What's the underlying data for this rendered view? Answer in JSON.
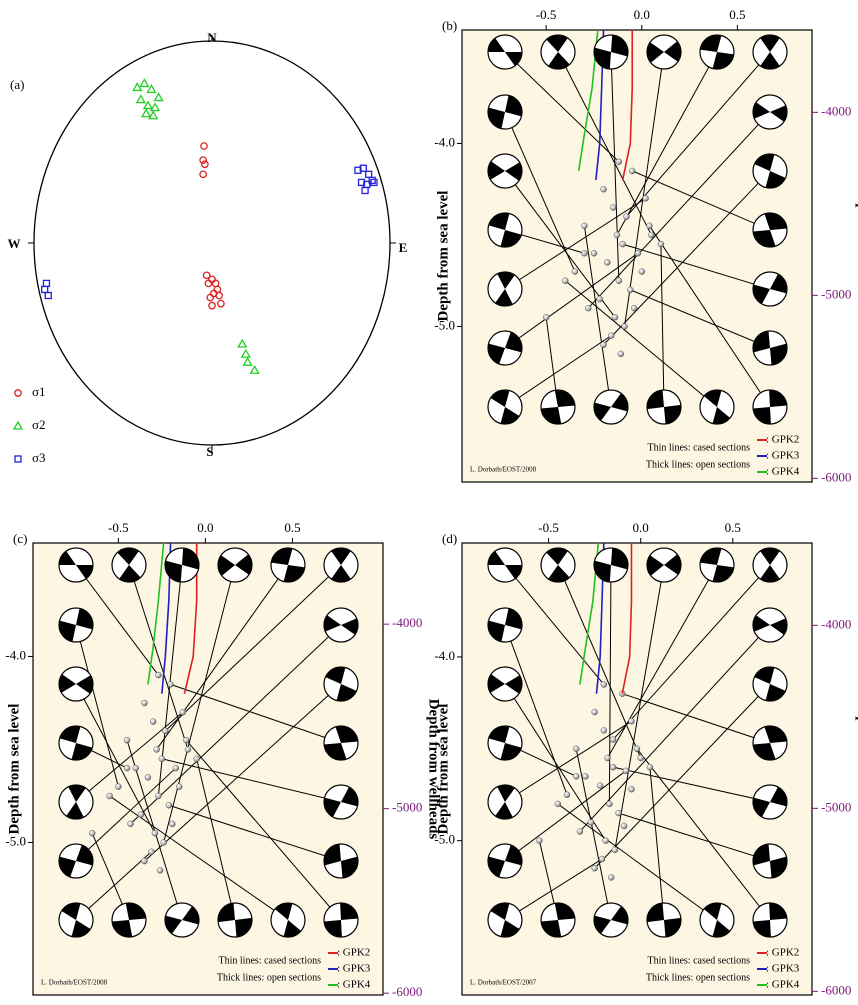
{
  "chart_data": [
    {
      "type": "stereonet",
      "label": "(a)",
      "directions": {
        "N": "N",
        "S": "S",
        "E": "E",
        "W": "W"
      },
      "series": [
        {
          "name": "σ1",
          "color": "#e02020",
          "marker": "circle",
          "x": [
            -0.045,
            -0.05,
            -0.04,
            -0.05,
            -0.03,
            0.0,
            -0.02,
            0.02,
            0.03,
            0.01,
            -0.01,
            0.04,
            0.05,
            0.0
          ],
          "y": [
            0.48,
            0.41,
            0.39,
            0.34,
            -0.16,
            -0.18,
            -0.2,
            -0.2,
            -0.23,
            -0.25,
            -0.27,
            -0.26,
            -0.3,
            -0.31
          ]
        },
        {
          "name": "σ2",
          "color": "#20d020",
          "marker": "triangle",
          "x": [
            -0.42,
            -0.38,
            -0.34,
            -0.3,
            -0.4,
            -0.36,
            -0.32,
            -0.37,
            -0.33,
            0.17,
            0.19,
            0.2,
            0.24
          ],
          "y": [
            0.77,
            0.79,
            0.76,
            0.72,
            0.71,
            0.68,
            0.67,
            0.64,
            0.63,
            -0.5,
            -0.55,
            -0.59,
            -0.63
          ]
        },
        {
          "name": "σ3",
          "color": "#2020e0",
          "marker": "square",
          "x": [
            0.82,
            0.85,
            0.88,
            0.9,
            0.84,
            0.87,
            0.91,
            0.86,
            -0.93,
            -0.94,
            -0.92
          ],
          "y": [
            0.36,
            0.37,
            0.34,
            0.31,
            0.3,
            0.29,
            0.3,
            0.26,
            -0.2,
            -0.23,
            -0.26
          ]
        }
      ]
    },
    {
      "type": "section",
      "label": "(b)",
      "ylabel": "Depth from sea level",
      "y2label": "Depth from wellheads",
      "xlim": [
        -0.94,
        0.89
      ],
      "xticks": [
        -0.5,
        {
          "value": 0,
          "label": "0.0"
        },
        0.5
      ],
      "ylim": [
        -5.85,
        -3.38
      ],
      "yticks": [
        {
          "value": -4,
          "label": "-4.0"
        },
        {
          "value": -5,
          "label": "-5.0"
        }
      ],
      "y2lim": [
        -6020,
        -3550
      ],
      "y2ticks": [
        -4000,
        -5000,
        -6000
      ],
      "notes": [
        "Thin lines: cased sections",
        "Thick lines: open sections"
      ],
      "credit": "L. Dorbath/EOST/2008",
      "series": [
        {
          "name": ":  GPK2",
          "color": "#e02020",
          "x": [
            -0.05,
            -0.05,
            -0.06,
            -0.1
          ],
          "y": [
            -3.38,
            -3.7,
            -4.0,
            -4.2
          ]
        },
        {
          "name": ":  GPK3",
          "color": "#2020c0",
          "x": [
            -0.2,
            -0.21,
            -0.22,
            -0.24
          ],
          "y": [
            -3.38,
            -3.7,
            -4.0,
            -4.2
          ]
        },
        {
          "name": ":  GPK4",
          "color": "#20c020",
          "x": [
            -0.23,
            -0.26,
            -0.3,
            -0.33
          ],
          "y": [
            -3.38,
            -3.7,
            -3.95,
            -4.15
          ]
        }
      ],
      "events": {
        "x": [
          -0.12,
          -0.05,
          -0.2,
          0.02,
          -0.15,
          -0.08,
          -0.3,
          0.05,
          -0.1,
          -0.25,
          -0.02,
          -0.18,
          -0.35,
          0.1,
          -0.12,
          -0.06,
          -0.22,
          -0.28,
          0.0,
          -0.14,
          -0.4,
          -0.09,
          -0.16,
          -0.04,
          -0.2,
          -0.11,
          -0.3,
          0.04,
          -0.13,
          -0.5
        ],
        "depth": [
          -4.1,
          -4.15,
          -4.25,
          -4.3,
          -4.35,
          -4.4,
          -4.45,
          -4.5,
          -4.55,
          -4.6,
          -4.6,
          -4.65,
          -4.7,
          -4.55,
          -4.75,
          -4.8,
          -4.85,
          -4.9,
          -4.7,
          -4.95,
          -4.75,
          -5.0,
          -5.05,
          -4.9,
          -5.1,
          -5.15,
          -4.6,
          -4.45,
          -4.5,
          -4.95
        ]
      }
    },
    {
      "type": "section",
      "label": "(c)",
      "ylabel": "Depth from sea level",
      "y2label": "Depth from wellheads",
      "xlim": [
        -0.99,
        1.02
      ],
      "xticks": [
        -0.5,
        {
          "value": 0,
          "label": "0.0"
        },
        0.5
      ],
      "ylim": [
        -5.82,
        -3.39
      ],
      "yticks": [
        {
          "value": -4,
          "label": "-4.0"
        },
        {
          "value": -5,
          "label": "-5.0"
        }
      ],
      "y2lim": [
        -6010,
        -3560
      ],
      "y2ticks": [
        -4000,
        -5000,
        -6000
      ],
      "notes": [
        "Thin lines: cased sections",
        "Thick lines: open sections"
      ],
      "credit": "L. Dorbath/EOST/2008",
      "series": [
        {
          "name": ":  GPK2",
          "color": "#e02020",
          "x": [
            -0.05,
            -0.05,
            -0.07,
            -0.12
          ],
          "y": [
            -3.39,
            -3.7,
            -4.0,
            -4.2
          ]
        },
        {
          "name": ":  GPK3",
          "color": "#2020c0",
          "x": [
            -0.2,
            -0.21,
            -0.23,
            -0.25
          ],
          "y": [
            -3.39,
            -3.7,
            -4.0,
            -4.2
          ]
        },
        {
          "name": ":  GPK4",
          "color": "#20c020",
          "x": [
            -0.24,
            -0.27,
            -0.3,
            -0.33
          ],
          "y": [
            -3.39,
            -3.7,
            -3.95,
            -4.15
          ]
        }
      ],
      "events": {
        "x": [
          -0.27,
          -0.2,
          -0.35,
          -0.13,
          -0.3,
          -0.23,
          -0.45,
          -0.1,
          -0.25,
          -0.4,
          -0.17,
          -0.33,
          -0.5,
          -0.05,
          -0.27,
          -0.21,
          -0.37,
          -0.43,
          -0.15,
          -0.29,
          -0.55,
          -0.24,
          -0.31,
          -0.19,
          -0.35,
          -0.26,
          -0.45,
          -0.11,
          -0.28,
          -0.65
        ],
        "depth": [
          -4.1,
          -4.15,
          -4.25,
          -4.3,
          -4.35,
          -4.4,
          -4.45,
          -4.5,
          -4.55,
          -4.6,
          -4.6,
          -4.65,
          -4.7,
          -4.55,
          -4.75,
          -4.8,
          -4.85,
          -4.9,
          -4.7,
          -4.95,
          -4.75,
          -5.0,
          -5.05,
          -4.9,
          -5.1,
          -5.15,
          -4.6,
          -4.45,
          -4.5,
          -4.95
        ]
      }
    },
    {
      "type": "section",
      "label": "(d)",
      "ylabel": "Depth from sea level",
      "y2label": "Depth from wellheads",
      "xlim": [
        -0.97,
        0.93
      ],
      "xticks": [
        -0.5,
        {
          "value": 0,
          "label": "0.0"
        },
        0.5
      ],
      "ylim": [
        -5.84,
        -3.38
      ],
      "yticks": [
        {
          "value": -4,
          "label": "-4.0"
        },
        {
          "value": -5,
          "label": "-5.0"
        }
      ],
      "y2lim": [
        -6020,
        -3550
      ],
      "y2ticks": [
        -4000,
        -5000,
        -6000
      ],
      "notes": [
        "Thin lines: cased sections",
        "Thick lines: open sections"
      ],
      "credit": "L. Dorbath/EOST/2007",
      "series": [
        {
          "name": ":  GPK2",
          "color": "#e02020",
          "x": [
            -0.05,
            -0.05,
            -0.06,
            -0.1
          ],
          "y": [
            -3.38,
            -3.7,
            -4.0,
            -4.2
          ]
        },
        {
          "name": ":  GPK3",
          "color": "#2020c0",
          "x": [
            -0.2,
            -0.21,
            -0.22,
            -0.24
          ],
          "y": [
            -3.38,
            -3.7,
            -4.0,
            -4.2
          ]
        },
        {
          "name": ":  GPK4",
          "color": "#20c020",
          "x": [
            -0.23,
            -0.26,
            -0.3,
            -0.33
          ],
          "y": [
            -3.38,
            -3.7,
            -3.95,
            -4.15
          ]
        }
      ],
      "events": {
        "x": [
          -0.2,
          -0.1,
          -0.25,
          -0.05,
          -0.2,
          -0.15,
          -0.35,
          0.0,
          -0.15,
          -0.3,
          -0.08,
          -0.22,
          -0.4,
          0.05,
          -0.17,
          -0.12,
          -0.27,
          -0.33,
          -0.05,
          -0.19,
          -0.45,
          -0.14,
          -0.21,
          -0.09,
          -0.25,
          -0.16,
          -0.35,
          -0.02,
          -0.18,
          -0.55
        ],
        "depth": [
          -4.15,
          -4.2,
          -4.3,
          -4.35,
          -4.4,
          -4.45,
          -4.5,
          -4.55,
          -4.6,
          -4.65,
          -4.62,
          -4.7,
          -4.75,
          -4.6,
          -4.8,
          -4.85,
          -4.9,
          -4.95,
          -4.72,
          -5.0,
          -4.8,
          -5.05,
          -5.1,
          -4.92,
          -5.15,
          -5.2,
          -4.65,
          -4.5,
          -4.55,
          -5.0
        ]
      }
    }
  ]
}
